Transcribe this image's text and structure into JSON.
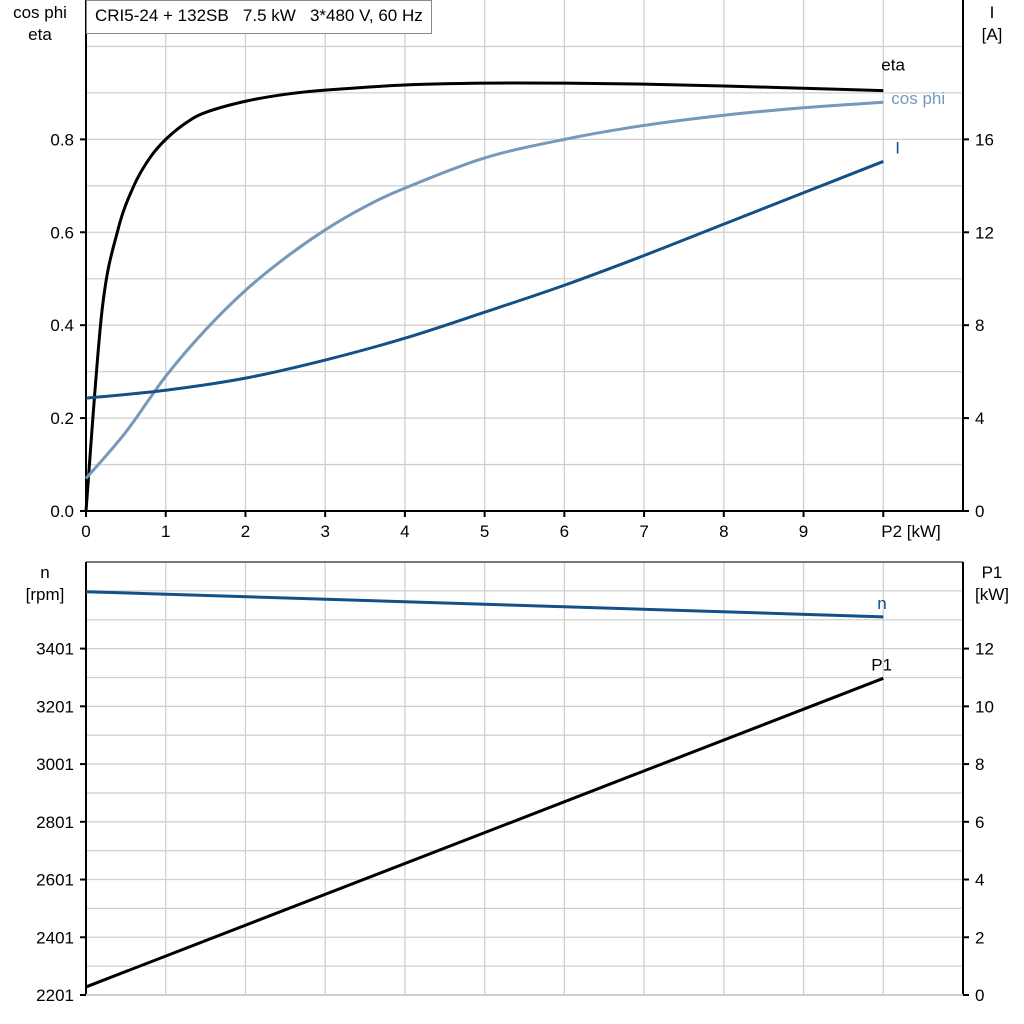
{
  "title": "CRI5-24 + 132SB   7.5 kW   3*480 V, 60 Hz",
  "chart_data": [
    {
      "type": "line",
      "xlabel": "P2 [kW]",
      "xlim": [
        0,
        11
      ],
      "xticks": [
        "0",
        "1",
        "2",
        "3",
        "4",
        "5",
        "6",
        "7",
        "8",
        "9"
      ],
      "ylabel_left": [
        "cos phi",
        "eta"
      ],
      "ylim_left": [
        0,
        1.1
      ],
      "yticks_left": [
        "0.0",
        "0.2",
        "0.4",
        "0.6",
        "0.8"
      ],
      "ylabel_right": [
        "I",
        "[A]"
      ],
      "ylim_right": [
        0,
        22
      ],
      "yticks_right": [
        "0",
        "4",
        "8",
        "12",
        "16"
      ],
      "grid": true,
      "series": [
        {
          "name": "eta",
          "axis": "left",
          "color": "#000000",
          "x": [
            0,
            0.2,
            0.4,
            0.6,
            0.8,
            1,
            1.25,
            1.5,
            2,
            2.5,
            3,
            4,
            5,
            6,
            7,
            8,
            9,
            10
          ],
          "y": [
            0,
            0.43,
            0.605,
            0.7,
            0.76,
            0.8,
            0.835,
            0.858,
            0.882,
            0.897,
            0.906,
            0.917,
            0.921,
            0.921,
            0.919,
            0.915,
            0.91,
            0.905
          ]
        },
        {
          "name": "cos phi",
          "axis": "left",
          "color": "#7598bb",
          "x": [
            0,
            0.5,
            1,
            1.5,
            2,
            2.5,
            3,
            3.5,
            4,
            5,
            6,
            7,
            8,
            9,
            10
          ],
          "y": [
            0.07,
            0.17,
            0.29,
            0.39,
            0.475,
            0.545,
            0.605,
            0.655,
            0.695,
            0.76,
            0.8,
            0.83,
            0.852,
            0.868,
            0.88
          ]
        },
        {
          "name": "I",
          "axis": "right",
          "color": "#144f86",
          "x": [
            0,
            1,
            2,
            3,
            4,
            5,
            6,
            7,
            8,
            9,
            10
          ],
          "y": [
            4.86,
            5.2,
            5.72,
            6.5,
            7.44,
            8.56,
            9.72,
            11.0,
            12.35,
            13.7,
            15.05
          ]
        }
      ]
    },
    {
      "type": "line",
      "xlim": [
        0,
        11
      ],
      "ylabel_left": [
        "n",
        "[rpm]"
      ],
      "ylim_left": [
        2201,
        3701
      ],
      "yticks_left": [
        "2201",
        "2401",
        "2601",
        "2801",
        "3001",
        "3201",
        "3401"
      ],
      "ylabel_right": [
        "P1",
        "[kW]"
      ],
      "ylim_right": [
        0,
        15
      ],
      "yticks_right": [
        "0",
        "2",
        "4",
        "6",
        "8",
        "10",
        "12"
      ],
      "grid": true,
      "series": [
        {
          "name": "n",
          "axis": "left",
          "color": "#144f86",
          "x": [
            0,
            10
          ],
          "y": [
            3598,
            3511
          ]
        },
        {
          "name": "P1",
          "axis": "right",
          "color": "#000000",
          "x": [
            0,
            10
          ],
          "y": [
            0.28,
            10.97
          ]
        }
      ]
    }
  ]
}
